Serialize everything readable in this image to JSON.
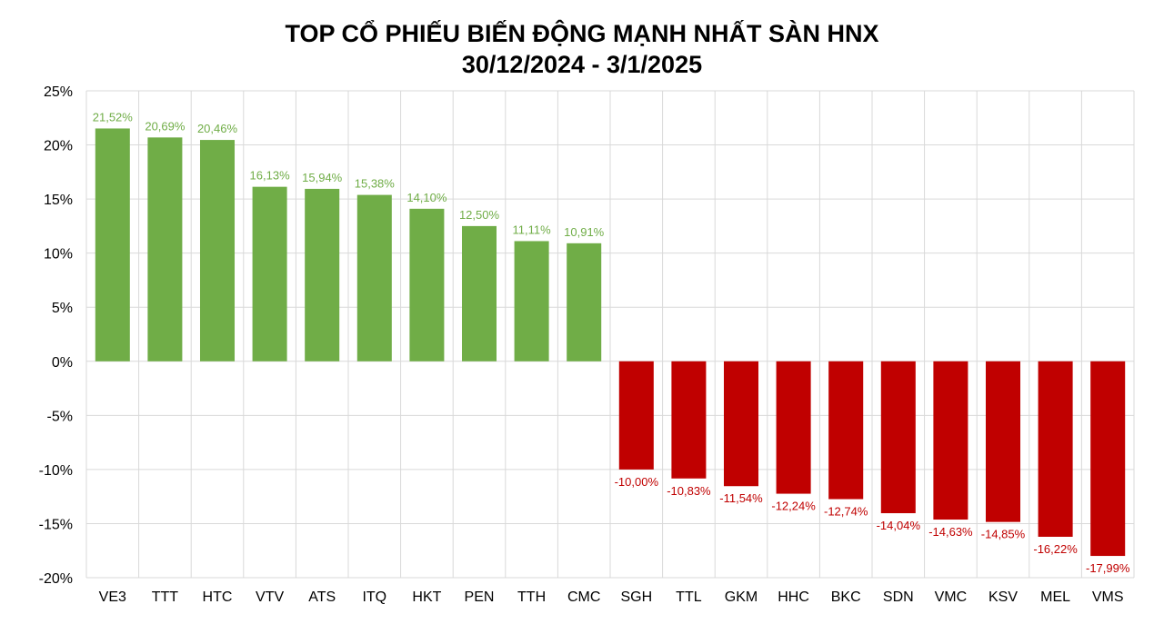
{
  "chart_data": {
    "type": "bar",
    "title": "TOP CỔ PHIẾU BIẾN ĐỘNG MẠNH NHẤT SÀN HNX",
    "subtitle": "30/12/2024 - 3/1/2025",
    "categories": [
      "VE3",
      "TTT",
      "HTC",
      "VTV",
      "ATS",
      "ITQ",
      "HKT",
      "PEN",
      "TTH",
      "CMC",
      "SGH",
      "TTL",
      "GKM",
      "HHC",
      "BKC",
      "SDN",
      "VMC",
      "KSV",
      "MEL",
      "VMS"
    ],
    "values": [
      21.52,
      20.69,
      20.46,
      16.13,
      15.94,
      15.38,
      14.1,
      12.5,
      11.11,
      10.91,
      -10.0,
      -10.83,
      -11.54,
      -12.24,
      -12.74,
      -14.04,
      -14.63,
      -14.85,
      -16.22,
      -17.99
    ],
    "data_labels": [
      "21,52%",
      "20,69%",
      "20,46%",
      "16,13%",
      "15,94%",
      "15,38%",
      "14,10%",
      "12,50%",
      "11,11%",
      "10,91%",
      "-10,00%",
      "-10,83%",
      "-11,54%",
      "-12,24%",
      "-12,74%",
      "-14,04%",
      "-14,63%",
      "-14,85%",
      "-16,22%",
      "-17,99%"
    ],
    "y_ticks": [
      25,
      20,
      15,
      10,
      5,
      0,
      -5,
      -10,
      -15,
      -20
    ],
    "y_tick_labels": [
      "25%",
      "20%",
      "15%",
      "10%",
      "5%",
      "0%",
      "-5%",
      "-10%",
      "-15%",
      "-20%"
    ],
    "ylim": [
      -20,
      25
    ],
    "xlabel": "",
    "ylabel": "",
    "grid": true,
    "legend": "none",
    "colors": {
      "positive_bar": "#70ad47",
      "negative_bar": "#c00000",
      "positive_label": "#70ad47",
      "negative_label": "#c00000",
      "grid": "#d9d9d9"
    }
  }
}
